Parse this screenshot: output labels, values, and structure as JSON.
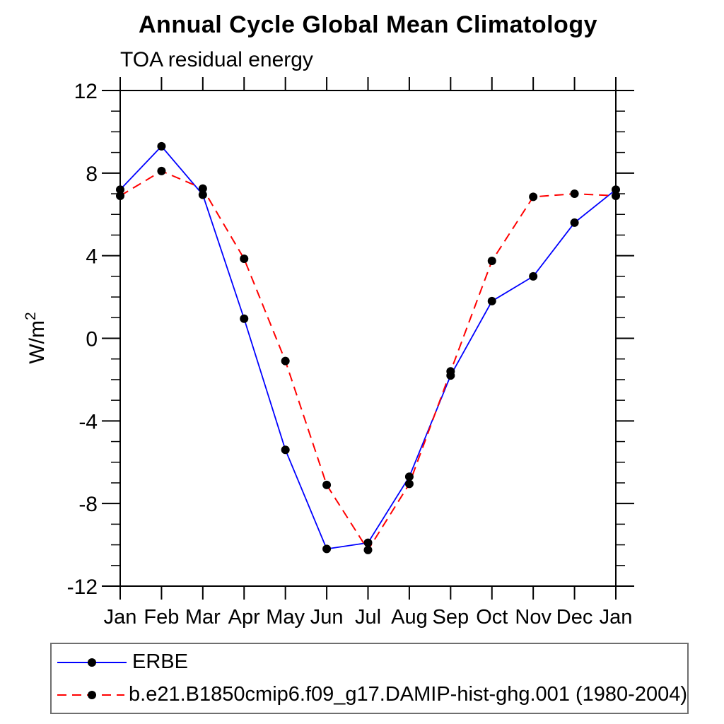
{
  "chart_data": {
    "type": "line",
    "title": "Annual Cycle Global Mean Climatology",
    "subtitle": "TOA residual energy",
    "xlabel": "",
    "ylabel": {
      "base": "W/m",
      "sup": "2"
    },
    "categories": [
      "Jan",
      "Feb",
      "Mar",
      "Apr",
      "May",
      "Jun",
      "Jul",
      "Aug",
      "Sep",
      "Oct",
      "Nov",
      "Dec",
      "Jan"
    ],
    "ylim": [
      -12,
      12
    ],
    "yticks": [
      -12,
      -8,
      -4,
      0,
      4,
      8,
      12
    ],
    "y_minor_step": 1,
    "grid": false,
    "legend_position": "bottom-left-box",
    "marker_color": "#000000",
    "series": [
      {
        "name": "ERBE",
        "color": "#0000ff",
        "style": "solid",
        "marker": "circle",
        "values": [
          7.2,
          9.3,
          6.95,
          0.95,
          -5.4,
          -10.2,
          -9.9,
          -6.7,
          -1.8,
          1.8,
          3.0,
          5.6,
          7.2
        ]
      },
      {
        "name": "b.e21.B1850cmip6.f09_g17.DAMIP-hist-ghg.001 (1980-2004)",
        "color": "#ff0000",
        "style": "dashed",
        "marker": "circle",
        "values": [
          6.9,
          8.1,
          7.25,
          3.85,
          -1.1,
          -7.1,
          -10.25,
          -7.05,
          -1.6,
          3.75,
          6.85,
          7.0,
          6.9
        ]
      }
    ]
  }
}
